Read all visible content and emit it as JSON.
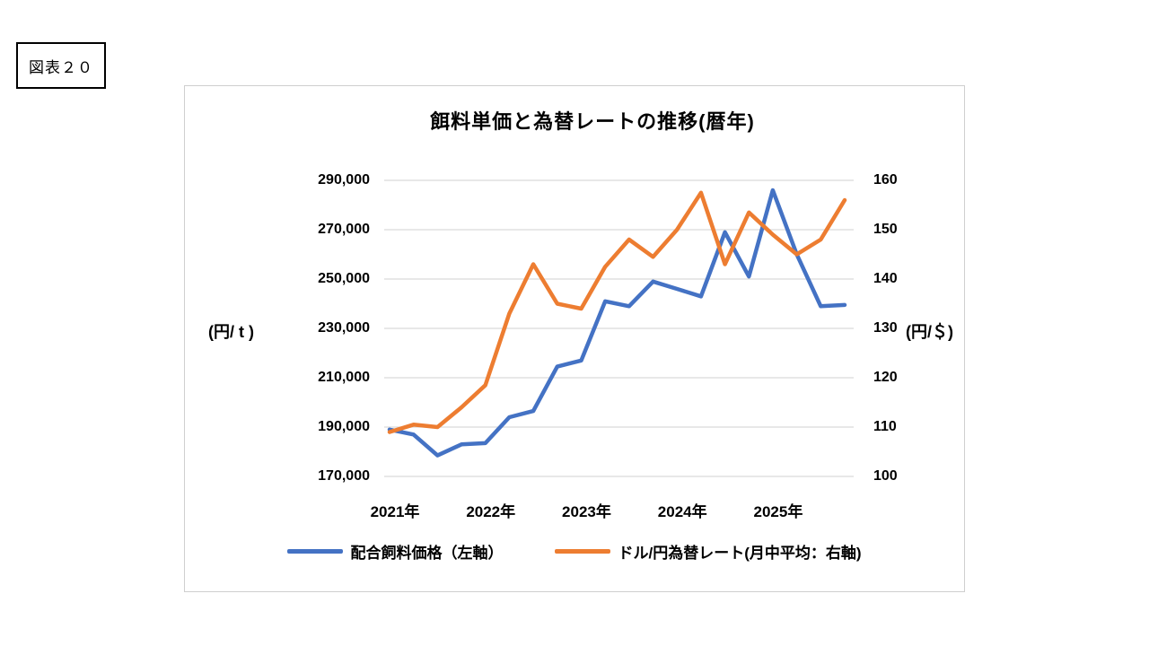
{
  "figure_label": "図表２０",
  "chart_data": {
    "type": "line",
    "title": "餌料単価と為替レートの推移(暦年)",
    "x_tick_labels": [
      "2021年",
      "2022年",
      "2023年",
      "2024年",
      "2025年"
    ],
    "periods": [
      "2021Q1",
      "2021Q2",
      "2021Q3",
      "2021Q4",
      "2022Q1",
      "2022Q2",
      "2022Q3",
      "2022Q4",
      "2023Q1",
      "2023Q2",
      "2023Q3",
      "2023Q4",
      "2024Q1",
      "2024Q2",
      "2024Q3",
      "2024Q4",
      "2025Q1",
      "2025Q2",
      "2025Q3",
      "2025Q4"
    ],
    "series": [
      {
        "name": "配合飼料価格（左軸）",
        "axis": "left",
        "color": "#4472C4",
        "values": [
          189000,
          187000,
          178500,
          183000,
          183500,
          194000,
          196500,
          214500,
          217000,
          241000,
          239000,
          249000,
          246000,
          243000,
          269000,
          251000,
          286000,
          260000,
          239000,
          239500
        ]
      },
      {
        "name": "ドル/円為替レート(月中平均：右軸)",
        "axis": "right",
        "color": "#ED7D31",
        "values": [
          109,
          110.5,
          110,
          114,
          118.5,
          133,
          143,
          135,
          134,
          142.5,
          148,
          144.5,
          150,
          157.5,
          143,
          153.5,
          149,
          145,
          148,
          156
        ]
      }
    ],
    "left_axis": {
      "title": "(円/ t )",
      "min": 170000,
      "max": 290000,
      "step": 20000,
      "tick_labels": [
        "290,000",
        "270,000",
        "250,000",
        "230,000",
        "210,000",
        "190,000",
        "170,000"
      ]
    },
    "right_axis": {
      "title": "(円/＄)",
      "min": 100,
      "max": 160,
      "step": 10,
      "tick_labels": [
        "160",
        "150",
        "140",
        "130",
        "120",
        "110",
        "100"
      ]
    },
    "grid": true,
    "gridline_color": "#D9D9D9",
    "text_color": "#000000",
    "legend_position": "bottom"
  }
}
